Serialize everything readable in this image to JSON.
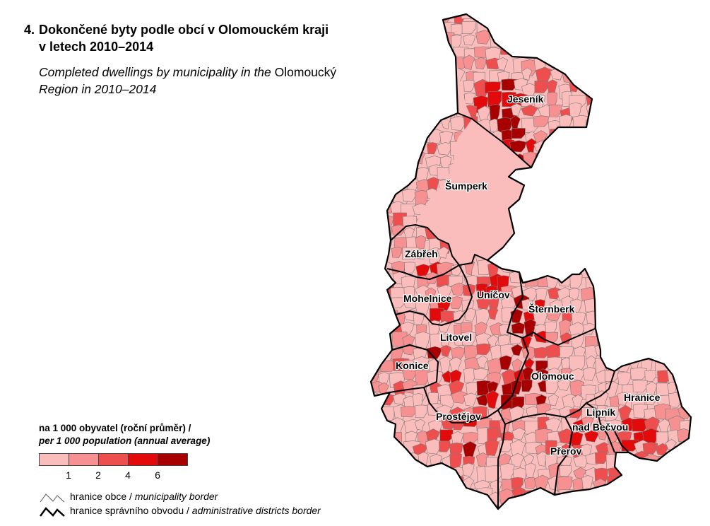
{
  "title": {
    "number": "4.",
    "line1": "Dokončené byty podle obcí v Olomouckém kraji",
    "line2": "v letech 2010–2014"
  },
  "subtitle": {
    "part1": "Completed dwellings by municipality in the",
    "part2": " Olomoucký",
    "part3": "Region in 2010–2014"
  },
  "legend": {
    "title_cz": "na 1 000 obyvatel (roční průměr) /",
    "title_en": "per 1 000 population (annual average)",
    "colors": [
      "#fbbcbc",
      "#f79090",
      "#ef4e4e",
      "#e20a0a",
      "#a80000"
    ],
    "ticks": [
      "1",
      "2",
      "4",
      "6"
    ],
    "municipality_border_cz": "hranice obce / ",
    "municipality_border_en": "municipality border",
    "district_border_cz": "hranice správního obvodu / ",
    "district_border_en": "administrative districts border"
  },
  "map": {
    "region": "Olomoucký kraj",
    "cities": [
      {
        "name": "Jeseník"
      },
      {
        "name": "Šumperk"
      },
      {
        "name": "Zábřeh"
      },
      {
        "name": "Mohelnice"
      },
      {
        "name": "Uničov"
      },
      {
        "name": "Šternberk"
      },
      {
        "name": "Litovel"
      },
      {
        "name": "Konice"
      },
      {
        "name": "Olomouc"
      },
      {
        "name": "Hranice"
      },
      {
        "name": "Lipník"
      },
      {
        "name": "nad Bečvou"
      },
      {
        "name": "Prostějov"
      },
      {
        "name": "Přerov"
      }
    ]
  }
}
